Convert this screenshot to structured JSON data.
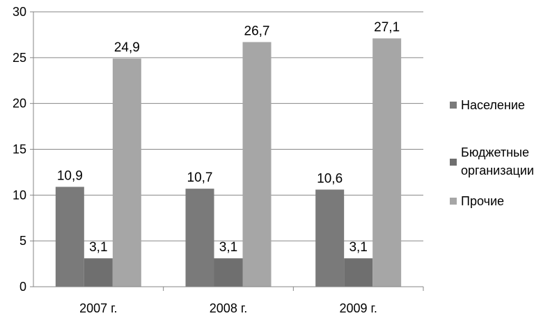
{
  "chart_data": {
    "type": "bar",
    "categories": [
      "2007 г.",
      "2008 г.",
      "2009 г."
    ],
    "series": [
      {
        "name": "Население",
        "values": [
          10.9,
          10.7,
          10.6
        ],
        "color": "#7a7a7a",
        "labels": [
          "10,9",
          "10,7",
          "10,6"
        ]
      },
      {
        "name": "Бюджетные организации",
        "legend_lines": [
          "Бюджетные",
          "организации"
        ],
        "values": [
          3.1,
          3.1,
          3.1
        ],
        "color": "#6f6f6f",
        "labels": [
          "3,1",
          "3,1",
          "3,1"
        ]
      },
      {
        "name": "Прочие",
        "values": [
          24.9,
          26.7,
          27.1
        ],
        "color": "#a6a6a6",
        "labels": [
          "24,9",
          "26,7",
          "27,1"
        ]
      }
    ],
    "ylim": [
      0,
      30
    ],
    "yticks": [
      "0",
      "5",
      "10",
      "15",
      "20",
      "25",
      "30"
    ],
    "grid": true,
    "legend_position": "right",
    "colors": {
      "grid": "#868686",
      "axis": "#868686"
    }
  }
}
